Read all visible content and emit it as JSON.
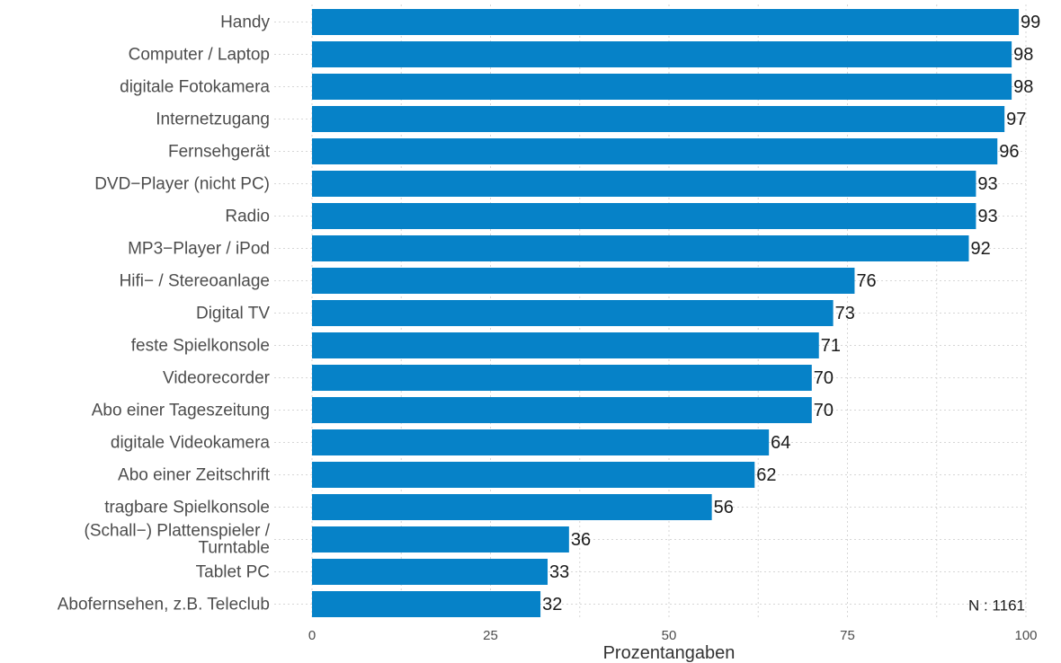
{
  "chart_data": {
    "type": "bar",
    "orientation": "horizontal",
    "categories": [
      "Handy",
      "Computer / Laptop",
      "digitale Fotokamera",
      "Internetzugang",
      "Fernsehgerät",
      "DVD−Player (nicht PC)",
      "Radio",
      "MP3−Player / iPod",
      "Hifi− / Stereoanlage",
      "Digital TV",
      "feste Spielkonsole",
      "Videorecorder",
      "Abo einer Tageszeitung",
      "digitale Videokamera",
      "Abo einer Zeitschrift",
      "tragbare Spielkonsole",
      "(Schall−) Plattenspieler / Turntable",
      "Tablet PC",
      "Abofernsehen, z.B. Teleclub"
    ],
    "values": [
      99,
      98,
      98,
      97,
      96,
      93,
      93,
      92,
      76,
      73,
      71,
      70,
      70,
      64,
      62,
      56,
      36,
      33,
      32
    ],
    "xlabel": "Prozentangaben",
    "xlim": [
      0,
      100
    ],
    "xticks": [
      0,
      25,
      50,
      75,
      100
    ],
    "grid": true,
    "note": "N : 1161",
    "colors": {
      "bar": "#0682c8"
    }
  }
}
